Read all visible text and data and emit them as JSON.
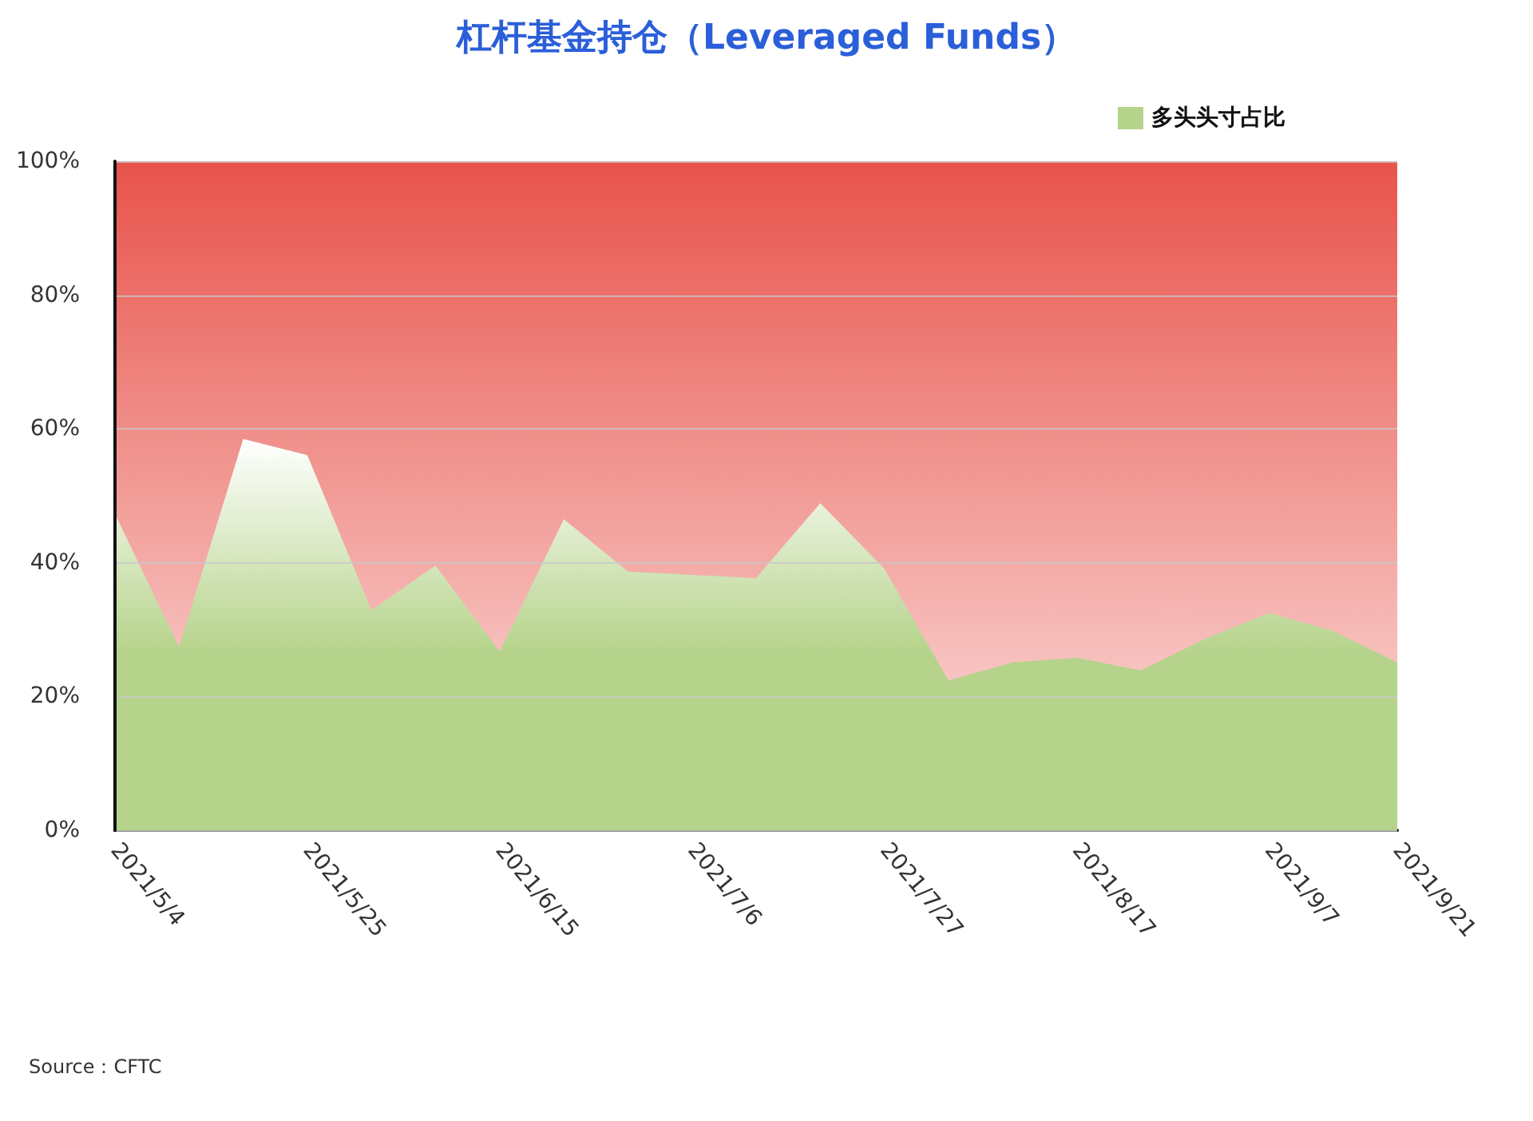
{
  "chart_data": {
    "type": "area",
    "title": "杠杆基金持仓（Leveraged Funds）",
    "categories": [
      "2021/5/4",
      null,
      null,
      "2021/5/25",
      null,
      null,
      "2021/6/15",
      null,
      null,
      "2021/7/6",
      null,
      null,
      "2021/7/27",
      null,
      null,
      "2021/8/17",
      null,
      null,
      "2021/9/7",
      null,
      "2021/9/21"
    ],
    "series": [
      {
        "name": "多头头寸占比",
        "color": "#b5d38a",
        "values": [
          47.3,
          27.4,
          58.5,
          56.1,
          32.9,
          39.6,
          26.7,
          46.5,
          38.7,
          38.2,
          37.7,
          48.9,
          39.1,
          22.4,
          25.1,
          25.8,
          23.9,
          28.6,
          32.5,
          29.8,
          25.1
        ]
      }
    ],
    "ylim": [
      0,
      100
    ],
    "yticks": [
      {
        "value": 0,
        "label": "0%"
      },
      {
        "value": 20,
        "label": "20%"
      },
      {
        "value": 40,
        "label": "40%"
      },
      {
        "value": 60,
        "label": "60%"
      },
      {
        "value": 80,
        "label": "80%"
      },
      {
        "value": 100,
        "label": "100%"
      }
    ],
    "bands": [
      {
        "axis": "y",
        "from": 0,
        "to": 100,
        "color": "#e8534b"
      }
    ],
    "grid": "y",
    "legend": "top right",
    "marker": "none",
    "annotations": [
      "Source：CFTC"
    ]
  }
}
